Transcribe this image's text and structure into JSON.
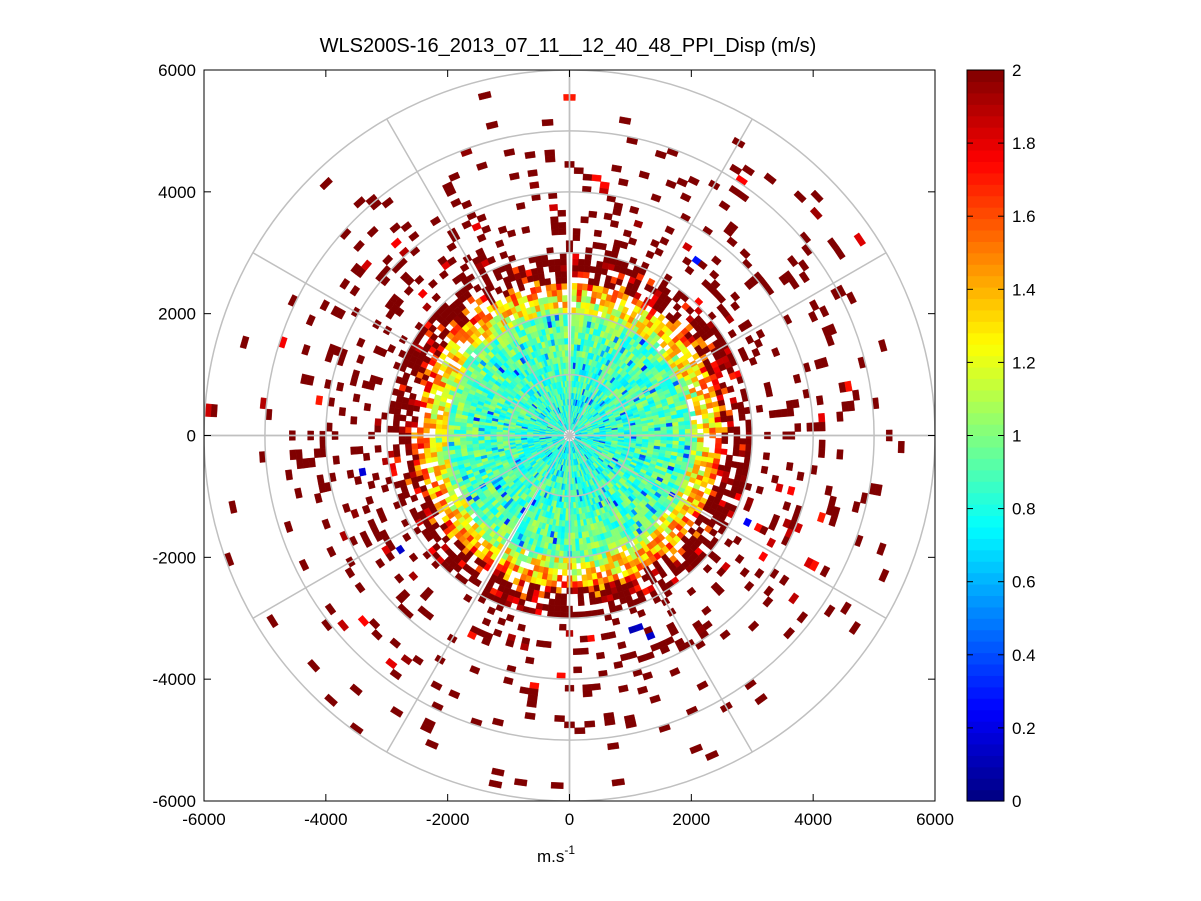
{
  "chart_data": {
    "type": "heatmap",
    "subtype": "polar-ppi",
    "title": "WLS200S-16_2013_07_11__12_40_48_PPI_Disp (m/s)",
    "xlabel_base": "m.s",
    "xlabel_exponent": "-1",
    "ylabel": "",
    "xlim": [
      -6000,
      6000
    ],
    "ylim": [
      -6000,
      6000
    ],
    "x_ticks": [
      "-6000",
      "-4000",
      "-2000",
      "0",
      "2000",
      "4000",
      "6000"
    ],
    "x_tick_values": [
      -6000,
      -4000,
      -2000,
      0,
      2000,
      4000,
      6000
    ],
    "y_ticks": [
      "6000",
      "4000",
      "2000",
      "0",
      "-2000",
      "-4000",
      "-6000"
    ],
    "y_tick_values": [
      6000,
      4000,
      2000,
      0,
      -2000,
      -4000,
      -6000
    ],
    "polar_grid": {
      "ring_radii": [
        1000,
        2000,
        3000,
        4000,
        5000,
        6000
      ],
      "spoke_angles_deg": [
        0,
        30,
        60,
        90,
        120,
        150,
        180,
        210,
        240,
        270,
        300,
        330
      ]
    },
    "colorbar": {
      "colormap": "jet",
      "range": [
        0,
        2
      ],
      "ticks": [
        "2",
        "1.8",
        "1.6",
        "1.4",
        "1.2",
        "1",
        "0.8",
        "0.6",
        "0.4",
        "0.2",
        "0"
      ],
      "tick_values": [
        2,
        1.8,
        1.6,
        1.4,
        1.2,
        1,
        0.8,
        0.6,
        0.4,
        0.2,
        0
      ]
    },
    "field_description": {
      "inner_mean_value": 0.8,
      "saturated_value": 2,
      "inner_radius": 2000,
      "transition_radius": 3000,
      "sparse_max_radius": 6000,
      "gap_azimuths_deg": [
        0,
        210
      ]
    }
  }
}
